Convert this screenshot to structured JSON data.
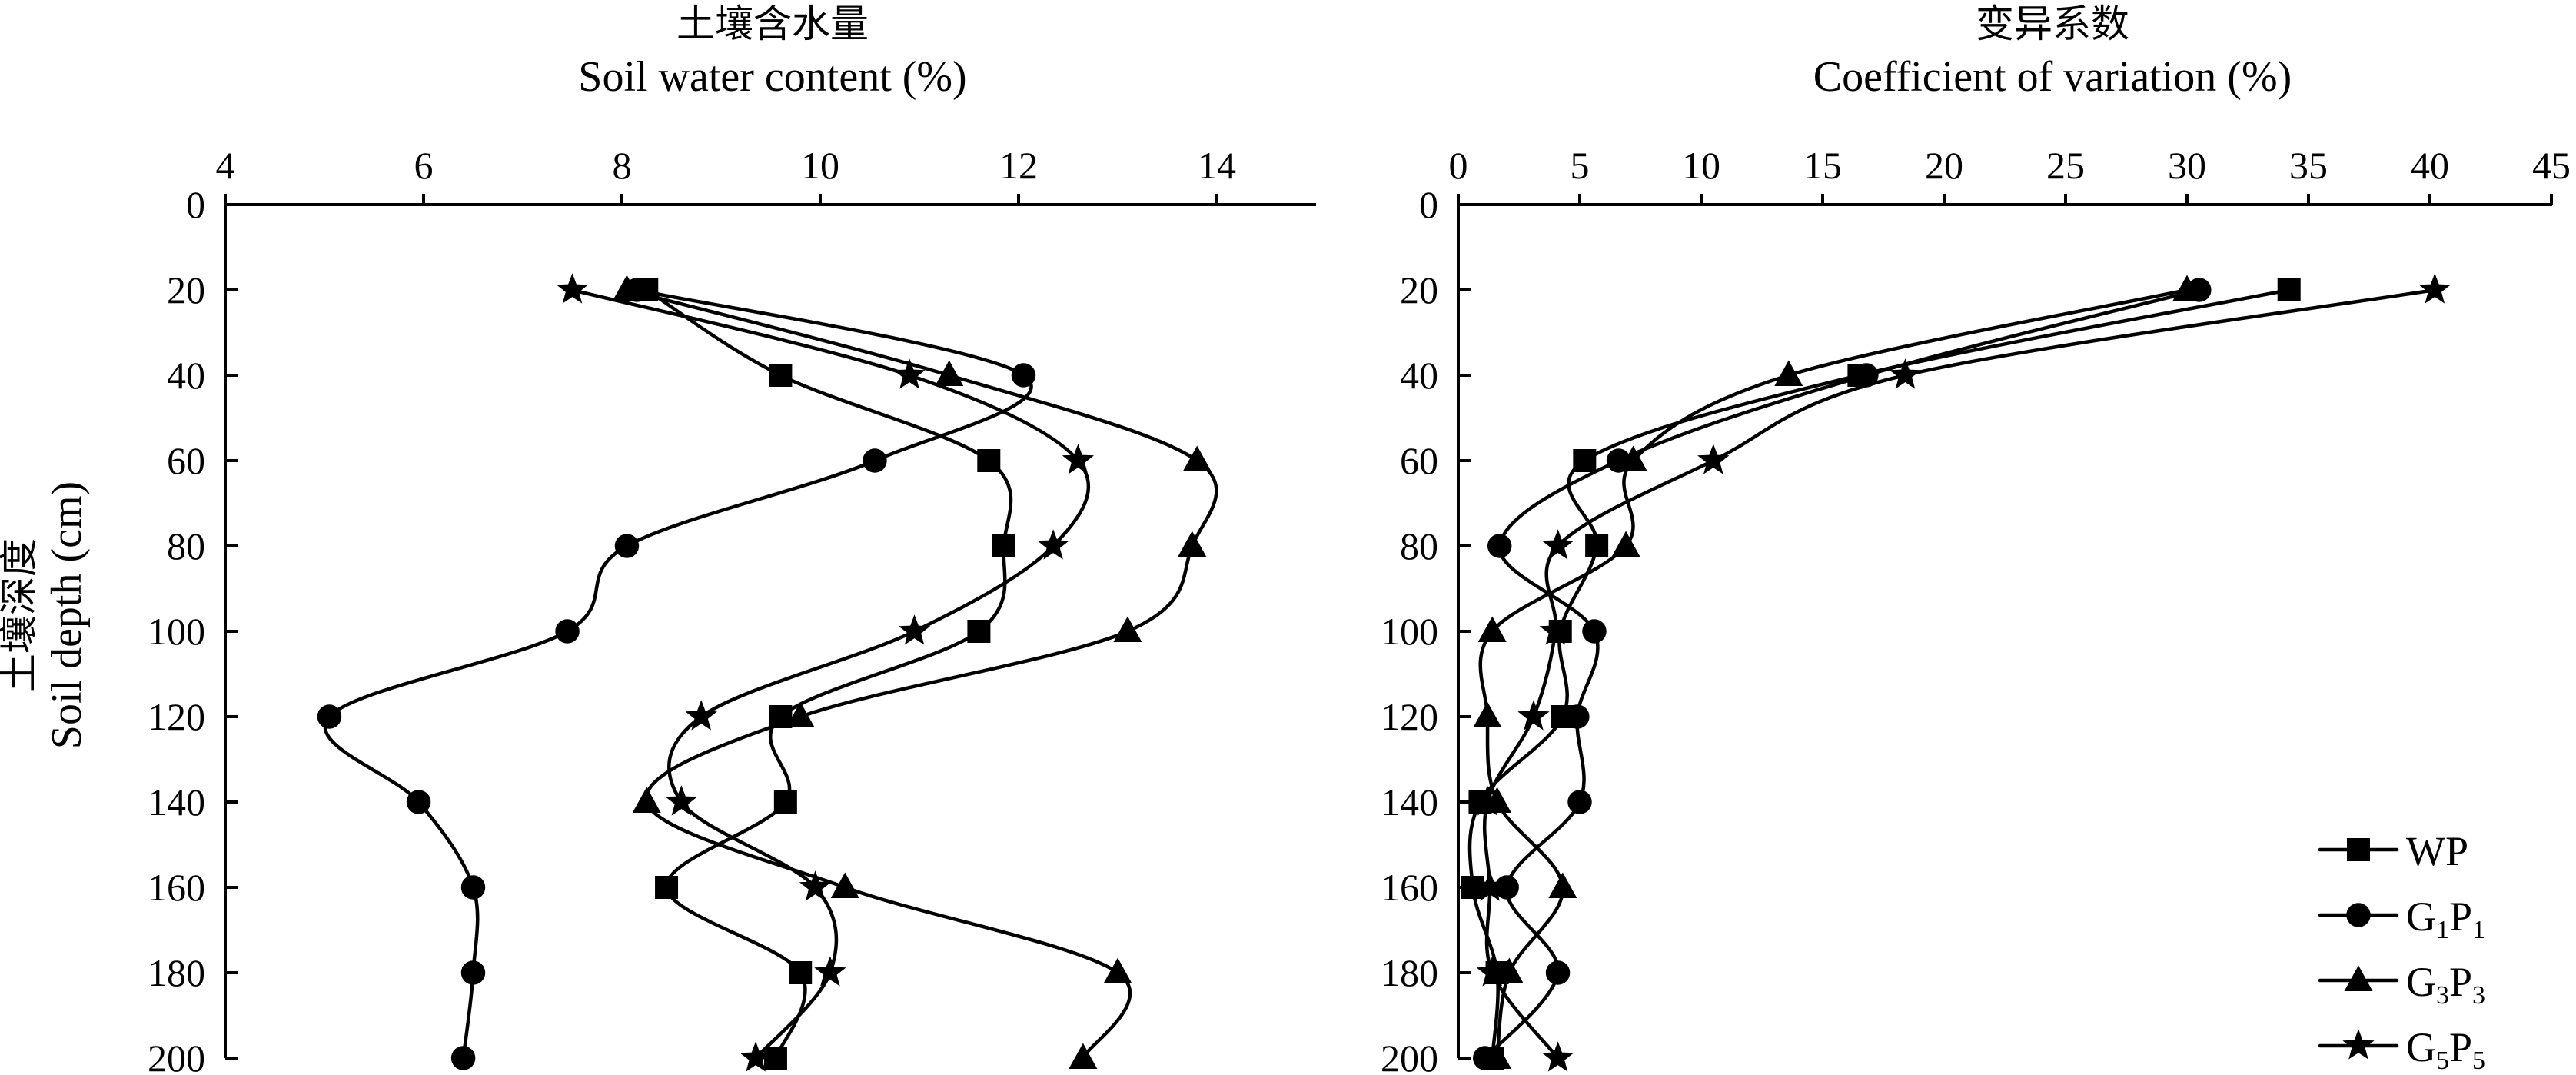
{
  "chart_data": [
    {
      "type": "line",
      "title_cn": "土壤含水量",
      "title": "Soil water content (%)",
      "ylabel_cn": "土壤深度",
      "ylabel": "Soil depth (cm)",
      "x_axis_position": "top",
      "y_inverted": true,
      "xlim": [
        4,
        15
      ],
      "xticks": [
        4,
        6,
        8,
        10,
        12,
        14
      ],
      "ylim": [
        0,
        200
      ],
      "yticks": [
        0,
        20,
        40,
        60,
        80,
        100,
        120,
        140,
        160,
        180,
        200
      ],
      "grid": false,
      "y": [
        20,
        40,
        60,
        80,
        100,
        120,
        140,
        160,
        180,
        200
      ],
      "series": [
        {
          "name": "WP",
          "marker": "square",
          "values": [
            8.25,
            9.6,
            11.7,
            11.85,
            11.6,
            9.6,
            9.65,
            8.45,
            9.8,
            9.55
          ]
        },
        {
          "name": "G1P1",
          "marker": "circle",
          "values": [
            8.15,
            12.05,
            10.55,
            8.05,
            7.45,
            5.05,
            5.95,
            6.5,
            6.5,
            6.4
          ]
        },
        {
          "name": "G3P3",
          "marker": "triangle",
          "values": [
            8.05,
            11.3,
            13.8,
            13.75,
            13.1,
            9.8,
            8.25,
            10.25,
            13.0,
            12.65
          ]
        },
        {
          "name": "G5P5",
          "marker": "star",
          "values": [
            7.5,
            10.9,
            12.6,
            12.35,
            10.95,
            8.8,
            8.6,
            9.95,
            10.1,
            9.35
          ]
        }
      ]
    },
    {
      "type": "line",
      "title_cn": "变异系数",
      "title": "Coefficient of variation (%)",
      "x_axis_position": "top",
      "y_inverted": true,
      "xlim": [
        0,
        45
      ],
      "xticks": [
        0,
        5,
        10,
        15,
        20,
        25,
        30,
        35,
        40,
        45
      ],
      "ylim": [
        0,
        200
      ],
      "yticks": [
        0,
        20,
        40,
        60,
        80,
        100,
        120,
        140,
        160,
        180,
        200
      ],
      "grid": false,
      "legend": "bottom-right",
      "y": [
        20,
        40,
        60,
        80,
        100,
        120,
        140,
        160,
        180,
        200
      ],
      "series": [
        {
          "name": "WP",
          "marker": "square",
          "values": [
            34.2,
            16.5,
            5.2,
            5.7,
            4.2,
            4.3,
            0.9,
            0.6,
            1.6,
            1.4
          ]
        },
        {
          "name": "G1P1",
          "marker": "circle",
          "values": [
            30.5,
            16.8,
            6.6,
            1.7,
            5.6,
            4.9,
            5.0,
            2.0,
            4.1,
            1.1
          ]
        },
        {
          "name": "G3P3",
          "marker": "triangle",
          "values": [
            30.0,
            13.6,
            7.2,
            6.9,
            1.4,
            1.2,
            1.6,
            4.3,
            2.1,
            1.6
          ]
        },
        {
          "name": "G5P5",
          "marker": "star",
          "values": [
            40.2,
            18.4,
            10.5,
            4.1,
            4.0,
            3.1,
            1.2,
            1.3,
            1.4,
            4.1
          ]
        }
      ]
    }
  ],
  "legend": {
    "items": [
      {
        "marker": "square",
        "base": "WP",
        "sub1": "",
        "mid": "",
        "sub2": ""
      },
      {
        "marker": "circle",
        "base": "G",
        "sub1": "1",
        "mid": "P",
        "sub2": "1"
      },
      {
        "marker": "triangle",
        "base": "G",
        "sub1": "3",
        "mid": "P",
        "sub2": "3"
      },
      {
        "marker": "star",
        "base": "G",
        "sub1": "5",
        "mid": "P",
        "sub2": "5"
      }
    ]
  }
}
